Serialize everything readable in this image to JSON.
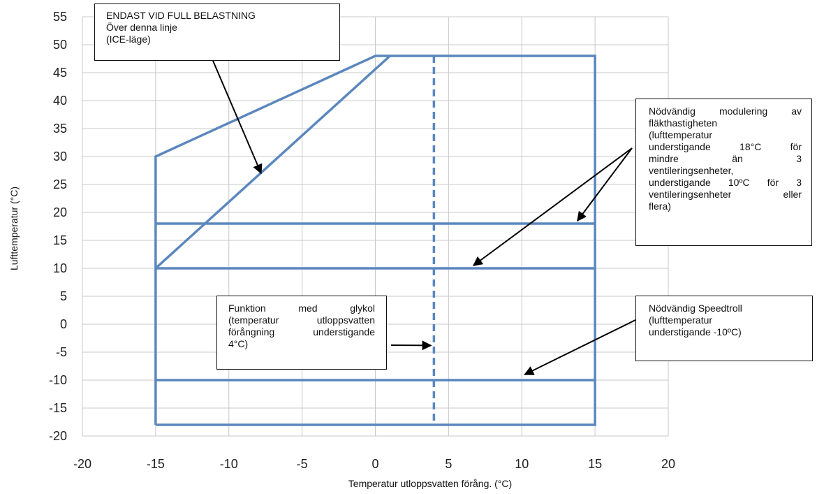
{
  "chart_data": {
    "type": "line",
    "xlabel": "Temperatur utloppsvatten förång. (°C)",
    "ylabel": "Lufttemperatur (°C)",
    "xlim": [
      -20,
      20
    ],
    "ylim": [
      -20,
      55
    ],
    "x_ticks": [
      "-20",
      "-15",
      "-10",
      "-5",
      "0",
      "5",
      "10",
      "15",
      "20"
    ],
    "y_ticks": [
      "55",
      "50",
      "45",
      "40",
      "35",
      "30",
      "25",
      "20",
      "15",
      "10",
      "5",
      "0",
      "-5",
      "-10",
      "-15",
      "-20"
    ],
    "grid": true,
    "line_color": "#5b87bd",
    "grid_color": "#c8c8c8",
    "series": [
      {
        "points": [
          [
            -15,
            -18
          ],
          [
            -15,
            30
          ],
          [
            0,
            48
          ],
          [
            15,
            48
          ],
          [
            15,
            -18
          ],
          [
            -15,
            -18
          ]
        ]
      },
      {
        "points": [
          [
            -15,
            10
          ],
          [
            1,
            48
          ]
        ]
      },
      {
        "points": [
          [
            -15,
            18
          ],
          [
            15,
            18
          ]
        ]
      },
      {
        "points": [
          [
            -15,
            10
          ],
          [
            15,
            10
          ]
        ]
      },
      {
        "points": [
          [
            -15,
            -10
          ],
          [
            15,
            -10
          ]
        ]
      },
      {
        "points": [
          [
            4,
            48
          ],
          [
            4,
            -18
          ]
        ],
        "dashed": true
      }
    ],
    "annotations": [
      {
        "id": "ice",
        "lines": [
          "ENDAST VID FULL BELASTNING",
          "Över denna linje",
          "(ICE-läge)"
        ],
        "arrows": [
          [
            -7.8,
            27
          ]
        ]
      },
      {
        "id": "fan",
        "lines": [
          "Nödvändig modulering av",
          "fläkthastigheten",
          "(lufttemperatur",
          "understigande 18°C för",
          "mindre än 3",
          "ventileringsenheter,",
          "understigande 10ºC för 3",
          "ventileringsenheter eller",
          "flera)"
        ],
        "arrows": [
          [
            13.8,
            18.5
          ],
          [
            6.7,
            10.5
          ]
        ]
      },
      {
        "id": "glycol",
        "lines": [
          "Funktion med glykol",
          "(temperatur utloppsvatten",
          "förångning understigande",
          "4°C)"
        ],
        "arrows": [
          [
            3.8,
            -3.8
          ]
        ]
      },
      {
        "id": "speedtroll",
        "lines": [
          "Nödvändig Speedtroll",
          "(lufttemperatur",
          "understigande -10ºC)"
        ],
        "arrows": [
          [
            10.2,
            -9
          ]
        ]
      }
    ]
  }
}
